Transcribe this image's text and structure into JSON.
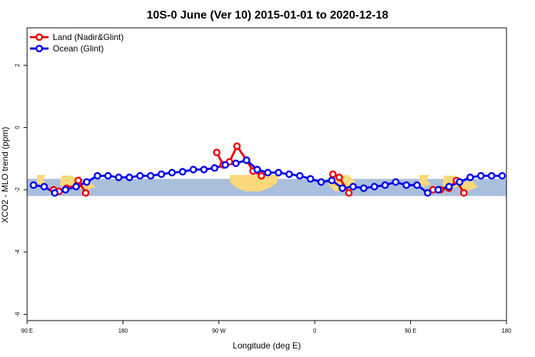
{
  "chart_data": {
    "type": "line",
    "title": "10S-0 June (Ver 10)   2015-01-01 to 2020-12-18",
    "xlabel": "Longitude (deg E)",
    "ylabel": "XCO2 - MLO trend (ppm)",
    "xlim": [
      90,
      540
    ],
    "ylim": [
      -6.2,
      3.2
    ],
    "xticks": [
      {
        "value": 90,
        "label": "90 E"
      },
      {
        "value": 180,
        "label": "180"
      },
      {
        "value": 270,
        "label": "90 W"
      },
      {
        "value": 360,
        "label": "0"
      },
      {
        "value": 450,
        "label": "90 E"
      },
      {
        "value": 540,
        "label": "180"
      }
    ],
    "yticks": [
      2,
      0,
      -2,
      -4,
      -6
    ],
    "legend_position": "top-left",
    "band": {
      "y_low": -2.2,
      "y_high": -1.65,
      "color": "#a9bfdc",
      "land_color": "#fbd97a"
    },
    "series": [
      {
        "name": "Land (Nadir&Glint)",
        "color": "#ee0000",
        "segments": [
          [
            [
              115,
              -2.0
            ],
            [
              120,
              -2.05
            ],
            [
              127,
              -1.95
            ],
            [
              137,
              -1.85
            ],
            [
              138,
              -1.7
            ],
            [
              145,
              -2.1
            ]
          ],
          [
            [
              268,
              -0.8
            ],
            [
              274,
              -1.2
            ],
            [
              280,
              -1.1
            ],
            [
              287,
              -0.6
            ],
            [
              296,
              -1.05
            ],
            [
              302,
              -1.4
            ],
            [
              310,
              -1.55
            ]
          ],
          [
            [
              377,
              -1.5
            ],
            [
              383,
              -1.6
            ],
            [
              392,
              -2.1
            ]
          ],
          [
            [
              471,
              -2.0
            ],
            [
              478,
              -2.0
            ],
            [
              486,
              -1.95
            ],
            [
              493,
              -1.7
            ],
            [
              500,
              -2.1
            ]
          ]
        ]
      },
      {
        "name": "Ocean (Glint)",
        "color": "#0000ee",
        "x": [
          96,
          106,
          116,
          126,
          136,
          146,
          156,
          166,
          176,
          186,
          196,
          206,
          216,
          226,
          236,
          246,
          256,
          266,
          276,
          286,
          296,
          306,
          316,
          326,
          336,
          346,
          356,
          366,
          376,
          386,
          396,
          406,
          416,
          426,
          436,
          446,
          456,
          466,
          476,
          486,
          496,
          506,
          516,
          526,
          536
        ],
        "y": [
          -1.85,
          -1.9,
          -2.1,
          -2.0,
          -1.9,
          -1.75,
          -1.55,
          -1.55,
          -1.6,
          -1.6,
          -1.55,
          -1.55,
          -1.5,
          -1.45,
          -1.42,
          -1.35,
          -1.35,
          -1.3,
          -1.2,
          -1.15,
          -1.05,
          -1.35,
          -1.45,
          -1.45,
          -1.5,
          -1.55,
          -1.65,
          -1.75,
          -1.7,
          -1.95,
          -1.9,
          -1.95,
          -1.9,
          -1.85,
          -1.75,
          -1.85,
          -1.85,
          -2.1,
          -2.0,
          -1.9,
          -1.75,
          -1.6,
          -1.55,
          -1.55,
          -1.55
        ]
      }
    ]
  }
}
